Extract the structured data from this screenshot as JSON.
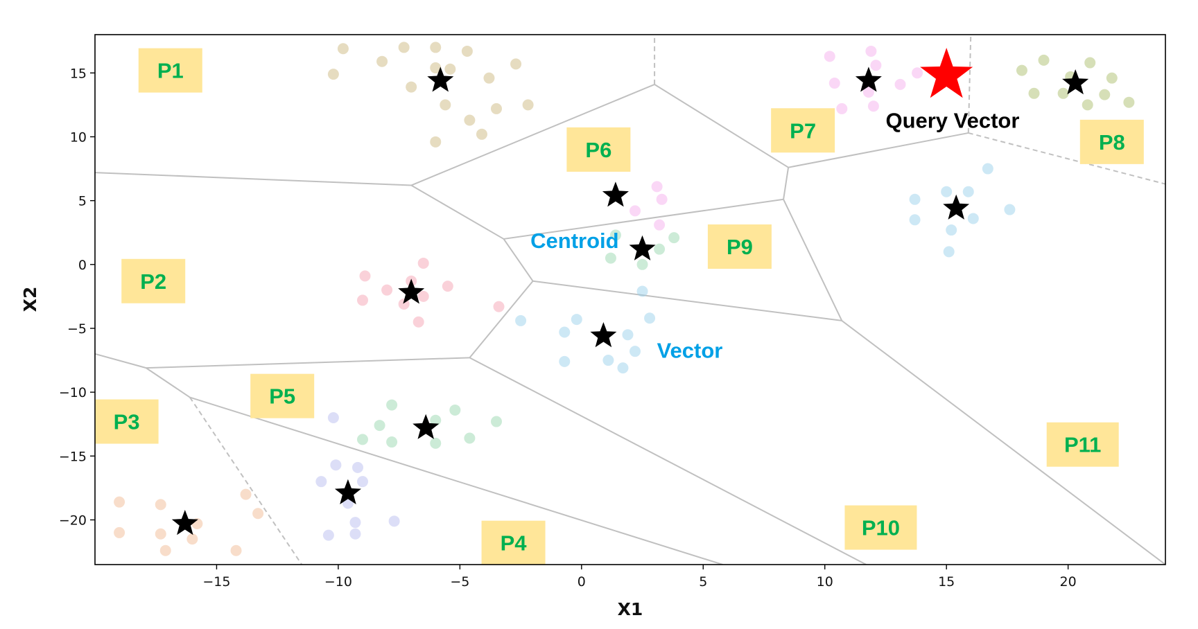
{
  "chart_data": {
    "type": "scatter",
    "title": "",
    "xlabel": "X1",
    "ylabel": "X2",
    "xlim": [
      -20,
      24
    ],
    "ylim": [
      -23.5,
      18
    ],
    "x_ticks": [
      -15,
      -10,
      -5,
      0,
      5,
      10,
      15,
      20
    ],
    "y_ticks": [
      15,
      10,
      5,
      0,
      -5,
      -10,
      -15,
      -20
    ],
    "tick_labels": {
      "x": [
        "−15",
        "−10",
        "−5",
        "0",
        "5",
        "10",
        "15",
        "20"
      ],
      "y": [
        "15",
        "10",
        "5",
        "0",
        "−5",
        "−10",
        "−15",
        "−20"
      ]
    },
    "grid": false,
    "cluster_point_alpha": 0.45,
    "clusters": [
      {
        "color": "#c8b273",
        "centroid": [
          -5.8,
          14.4
        ],
        "points": [
          [
            -9.8,
            16.9
          ],
          [
            -8.2,
            15.9
          ],
          [
            -7.3,
            17.0
          ],
          [
            -6.0,
            17.0
          ],
          [
            -4.7,
            16.7
          ],
          [
            -10.2,
            14.9
          ],
          [
            -6.0,
            15.4
          ],
          [
            -5.4,
            15.3
          ],
          [
            -7.0,
            13.9
          ],
          [
            -3.8,
            14.6
          ],
          [
            -5.6,
            12.5
          ],
          [
            -3.5,
            12.2
          ],
          [
            -2.2,
            12.5
          ],
          [
            -4.6,
            11.3
          ],
          [
            -4.1,
            10.2
          ],
          [
            -6.0,
            9.6
          ],
          [
            -2.7,
            15.7
          ]
        ]
      },
      {
        "color": "#f4a6ea",
        "centroid": [
          11.8,
          14.4
        ],
        "points": [
          [
            10.2,
            16.3
          ],
          [
            11.9,
            16.7
          ],
          [
            12.1,
            15.6
          ],
          [
            10.4,
            14.2
          ],
          [
            11.8,
            13.5
          ],
          [
            13.1,
            14.1
          ],
          [
            10.7,
            12.2
          ],
          [
            12.0,
            12.4
          ],
          [
            13.8,
            15.0
          ]
        ]
      },
      {
        "color": "#a5b860",
        "centroid": [
          20.3,
          14.2
        ],
        "points": [
          [
            18.1,
            15.2
          ],
          [
            19.0,
            16.0
          ],
          [
            20.1,
            14.7
          ],
          [
            20.9,
            15.8
          ],
          [
            21.8,
            14.6
          ],
          [
            18.6,
            13.4
          ],
          [
            19.8,
            13.4
          ],
          [
            20.8,
            12.5
          ],
          [
            21.5,
            13.3
          ],
          [
            22.5,
            12.7
          ]
        ]
      },
      {
        "color": "#f4a6ea",
        "centroid": [
          1.4,
          5.4
        ],
        "points": [
          [
            3.1,
            6.1
          ],
          [
            3.3,
            5.1
          ],
          [
            2.2,
            4.2
          ],
          [
            3.2,
            3.1
          ]
        ]
      },
      {
        "color": "#8fd3a7",
        "centroid": [
          2.5,
          1.2
        ],
        "points": [
          [
            1.4,
            2.3
          ],
          [
            1.2,
            0.5
          ],
          [
            2.5,
            0.0
          ],
          [
            3.2,
            1.2
          ],
          [
            3.8,
            2.1
          ]
        ]
      },
      {
        "color": "#90cbe8",
        "centroid": [
          15.4,
          4.4
        ],
        "points": [
          [
            16.7,
            7.5
          ],
          [
            13.7,
            5.1
          ],
          [
            15.0,
            5.7
          ],
          [
            15.9,
            5.7
          ],
          [
            17.6,
            4.3
          ],
          [
            13.7,
            3.5
          ],
          [
            15.2,
            2.7
          ],
          [
            16.1,
            3.6
          ],
          [
            15.1,
            1.0
          ]
        ]
      },
      {
        "color": "#f39aab",
        "centroid": [
          -7.0,
          -2.2
        ],
        "points": [
          [
            -6.5,
            0.1
          ],
          [
            -8.9,
            -0.9
          ],
          [
            -7.0,
            -1.3
          ],
          [
            -8.0,
            -2.0
          ],
          [
            -9.0,
            -2.8
          ],
          [
            -7.3,
            -3.1
          ],
          [
            -6.5,
            -2.5
          ],
          [
            -5.5,
            -1.7
          ],
          [
            -3.4,
            -3.3
          ],
          [
            -6.7,
            -4.5
          ]
        ]
      },
      {
        "color": "#90cbe8",
        "centroid": [
          0.9,
          -5.6
        ],
        "points": [
          [
            -2.5,
            -4.4
          ],
          [
            -0.7,
            -5.3
          ],
          [
            -0.2,
            -4.3
          ],
          [
            1.9,
            -5.5
          ],
          [
            2.8,
            -4.2
          ],
          [
            2.2,
            -6.8
          ],
          [
            -0.7,
            -7.6
          ],
          [
            1.1,
            -7.5
          ],
          [
            1.7,
            -8.1
          ],
          [
            2.5,
            -2.1
          ]
        ]
      },
      {
        "color": "#8fd3a7",
        "centroid": [
          -6.4,
          -12.8
        ],
        "points": [
          [
            -7.8,
            -11.0
          ],
          [
            -8.3,
            -12.6
          ],
          [
            -9.0,
            -13.7
          ],
          [
            -7.8,
            -13.9
          ],
          [
            -6.0,
            -12.2
          ],
          [
            -5.2,
            -11.4
          ],
          [
            -3.5,
            -12.3
          ],
          [
            -4.6,
            -13.6
          ],
          [
            -6.0,
            -14.0
          ]
        ]
      },
      {
        "color": "#b1b5ee",
        "centroid": [
          -9.6,
          -17.9
        ],
        "points": [
          [
            -10.2,
            -12.0
          ],
          [
            -10.1,
            -15.7
          ],
          [
            -9.2,
            -15.9
          ],
          [
            -10.7,
            -17.0
          ],
          [
            -9.0,
            -17.0
          ],
          [
            -9.6,
            -18.7
          ],
          [
            -9.3,
            -20.2
          ],
          [
            -7.7,
            -20.1
          ],
          [
            -10.4,
            -21.2
          ],
          [
            -9.3,
            -21.1
          ]
        ]
      },
      {
        "color": "#f0b48a",
        "centroid": [
          -16.3,
          -20.3
        ],
        "points": [
          [
            -19.0,
            -18.6
          ],
          [
            -17.3,
            -18.8
          ],
          [
            -13.8,
            -18.0
          ],
          [
            -13.3,
            -19.5
          ],
          [
            -15.8,
            -20.3
          ],
          [
            -19.0,
            -21.0
          ],
          [
            -17.3,
            -21.1
          ],
          [
            -16.0,
            -21.5
          ],
          [
            -17.1,
            -22.4
          ],
          [
            -14.2,
            -22.4
          ]
        ]
      }
    ],
    "query_vector": {
      "x": 15.0,
      "y": 14.8,
      "label": "Query Vector",
      "color": "#ff0000"
    },
    "solid_edges": [
      [
        [
          -20,
          7.2
        ],
        [
          -7.0,
          6.2
        ]
      ],
      [
        [
          -7.0,
          6.2
        ],
        [
          -3.2,
          2.0
        ]
      ],
      [
        [
          -7.0,
          6.2
        ],
        [
          3.0,
          14.1
        ]
      ],
      [
        [
          3.0,
          14.1
        ],
        [
          8.5,
          7.6
        ]
      ],
      [
        [
          8.5,
          7.6
        ],
        [
          15.9,
          10.3
        ]
      ],
      [
        [
          8.5,
          7.6
        ],
        [
          8.3,
          5.1
        ]
      ],
      [
        [
          -3.2,
          2.0
        ],
        [
          8.3,
          5.1
        ]
      ],
      [
        [
          -3.2,
          2.0
        ],
        [
          -2.0,
          -1.3
        ]
      ],
      [
        [
          -2.0,
          -1.3
        ],
        [
          10.7,
          -4.4
        ]
      ],
      [
        [
          8.3,
          5.1
        ],
        [
          10.7,
          -4.4
        ]
      ],
      [
        [
          10.7,
          -4.4
        ],
        [
          24,
          -23.5
        ]
      ],
      [
        [
          -2.0,
          -1.3
        ],
        [
          -4.6,
          -7.3
        ]
      ],
      [
        [
          -4.6,
          -7.3
        ],
        [
          -17.9,
          -8.1
        ]
      ],
      [
        [
          -4.6,
          -7.3
        ],
        [
          11.7,
          -23.5
        ]
      ],
      [
        [
          -20,
          -7.0
        ],
        [
          -17.9,
          -8.1
        ]
      ],
      [
        [
          -17.9,
          -8.1
        ],
        [
          -16.1,
          -10.4
        ]
      ],
      [
        [
          -16.1,
          -10.4
        ],
        [
          5.8,
          -23.5
        ]
      ]
    ],
    "dashed_edges": [
      [
        [
          3.0,
          14.1
        ],
        [
          3.0,
          18.0
        ]
      ],
      [
        [
          15.9,
          10.3
        ],
        [
          16.0,
          18.0
        ]
      ],
      [
        [
          15.9,
          10.3
        ],
        [
          24,
          6.3
        ]
      ],
      [
        [
          -16.1,
          -10.4
        ],
        [
          -11.5,
          -23.5
        ]
      ]
    ],
    "regions": [
      {
        "label": "P1",
        "x": -16.9,
        "y": 15.2
      },
      {
        "label": "P2",
        "x": -17.6,
        "y": -1.3
      },
      {
        "label": "P3",
        "x": -18.7,
        "y": -12.3
      },
      {
        "label": "P4",
        "x": -2.8,
        "y": -21.8
      },
      {
        "label": "P5",
        "x": -12.3,
        "y": -10.3
      },
      {
        "label": "P6",
        "x": 0.7,
        "y": 9.0
      },
      {
        "label": "P7",
        "x": 9.1,
        "y": 10.5
      },
      {
        "label": "P8",
        "x": 21.8,
        "y": 9.6
      },
      {
        "label": "P9",
        "x": 6.5,
        "y": 1.4
      },
      {
        "label": "P10",
        "x": 12.3,
        "y": -20.6
      },
      {
        "label": "P11",
        "x": 20.6,
        "y": -14.1
      }
    ],
    "annotations": [
      {
        "text": "Centroid",
        "x": -2.1,
        "y": 1.3,
        "color": "#00a0e6"
      },
      {
        "text": "Vector",
        "x": 3.1,
        "y": -7.3,
        "color": "#00a0e6"
      },
      {
        "text": "Query Vector",
        "x": 12.5,
        "y": 10.7,
        "color": "#000000"
      }
    ],
    "colors": {
      "region_label_text": "#00b050",
      "region_label_box": "#ffe699",
      "edge": "#c0c0c0",
      "centroid": "#000000"
    }
  }
}
